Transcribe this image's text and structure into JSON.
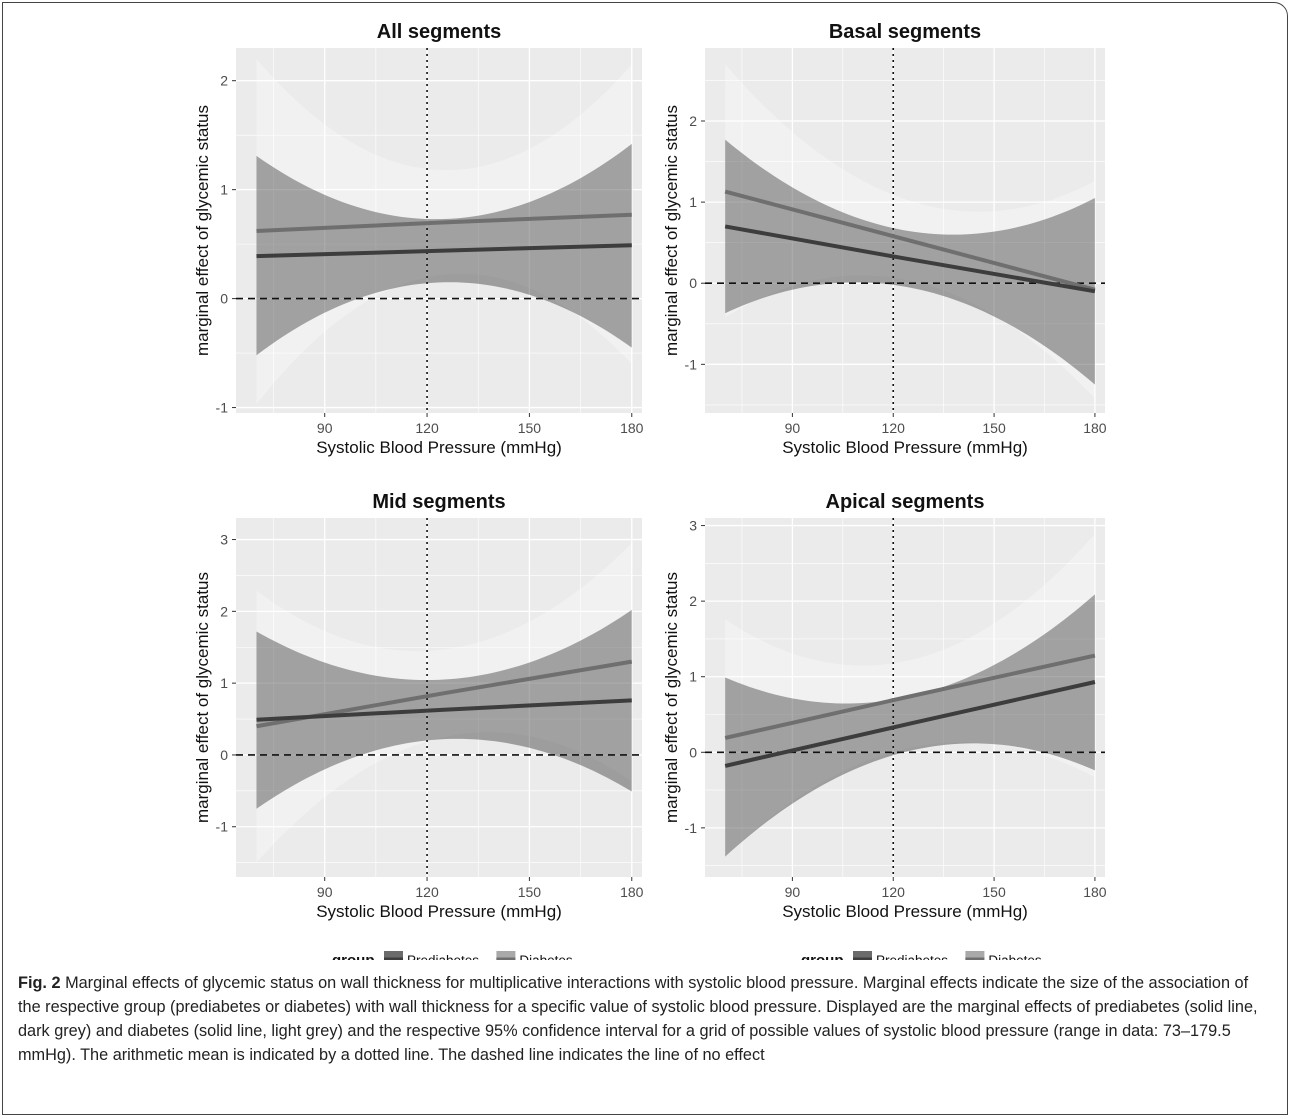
{
  "chart_data": [
    {
      "type": "line",
      "title": "All segments",
      "xlabel": "Systolic Blood Pressure (mmHg)",
      "ylabel": "marginal effect of glycemic status",
      "xlim": [
        64,
        183
      ],
      "ylim": [
        -1.05,
        2.3
      ],
      "xticks": [
        90,
        120,
        150,
        180
      ],
      "yticks": [
        -1,
        0,
        1,
        2
      ],
      "mean_line_x": 120,
      "no_effect_y": 0,
      "series": [
        {
          "name": "Prediabetes",
          "x": [
            70,
            125,
            180
          ],
          "y": [
            0.39,
            0.44,
            0.49
          ],
          "lower": [
            -0.52,
            0.15,
            -0.45
          ],
          "upper": [
            1.31,
            0.73,
            1.42
          ]
        },
        {
          "name": "Diabetes",
          "x": [
            70,
            125,
            180
          ],
          "y": [
            0.62,
            0.7,
            0.77
          ],
          "lower": [
            -0.97,
            0.22,
            -0.6
          ],
          "upper": [
            2.2,
            1.18,
            2.15
          ]
        }
      ]
    },
    {
      "type": "line",
      "title": "Basal segments",
      "xlabel": "Systolic Blood Pressure (mmHg)",
      "ylabel": "marginal effect of glycemic status",
      "xlim": [
        64,
        183
      ],
      "ylim": [
        -1.6,
        2.9
      ],
      "xticks": [
        90,
        120,
        150,
        180
      ],
      "yticks": [
        -1,
        0,
        1,
        2
      ],
      "mean_line_x": 120,
      "no_effect_y": 0,
      "series": [
        {
          "name": "Prediabetes",
          "x": [
            70,
            120,
            180
          ],
          "y": [
            0.7,
            0.33,
            -0.1
          ],
          "lower": [
            -0.37,
            -0.02,
            -1.25
          ],
          "upper": [
            1.77,
            0.68,
            1.05
          ]
        },
        {
          "name": "Diabetes",
          "x": [
            70,
            120,
            180
          ],
          "y": [
            1.13,
            0.58,
            -0.08
          ],
          "lower": [
            -0.42,
            0.07,
            -1.42
          ],
          "upper": [
            2.7,
            1.09,
            1.26
          ]
        }
      ]
    },
    {
      "type": "line",
      "title": "Mid segments",
      "xlabel": "Systolic Blood Pressure (mmHg)",
      "ylabel": "marginal effect of glycemic status",
      "xlim": [
        64,
        183
      ],
      "ylim": [
        -1.7,
        3.3
      ],
      "xticks": [
        90,
        120,
        150,
        180
      ],
      "yticks": [
        -1,
        0,
        1,
        2,
        3
      ],
      "mean_line_x": 120,
      "no_effect_y": 0,
      "series": [
        {
          "name": "Prediabetes",
          "x": [
            70,
            125,
            180
          ],
          "y": [
            0.49,
            0.63,
            0.76
          ],
          "lower": [
            -0.75,
            0.22,
            -0.51
          ],
          "upper": [
            1.72,
            1.05,
            2.02
          ]
        },
        {
          "name": "Diabetes",
          "x": [
            70,
            125,
            180
          ],
          "y": [
            0.4,
            0.86,
            1.3
          ],
          "lower": [
            -1.5,
            0.25,
            -0.37
          ],
          "upper": [
            2.29,
            1.47,
            2.95
          ]
        }
      ]
    },
    {
      "type": "line",
      "title": "Apical segments",
      "xlabel": "Systolic Blood Pressure (mmHg)",
      "ylabel": "marginal effect of glycemic status",
      "xlim": [
        64,
        183
      ],
      "ylim": [
        -1.65,
        3.1
      ],
      "xticks": [
        90,
        120,
        150,
        180
      ],
      "yticks": [
        -1,
        0,
        1,
        2,
        3
      ],
      "mean_line_x": 120,
      "no_effect_y": 0,
      "series": [
        {
          "name": "Prediabetes",
          "x": [
            70,
            125,
            180
          ],
          "y": [
            -0.18,
            0.38,
            0.93
          ],
          "lower": [
            -1.38,
            0.02,
            -0.24
          ],
          "upper": [
            0.99,
            0.74,
            2.09
          ]
        },
        {
          "name": "Diabetes",
          "x": [
            70,
            125,
            180
          ],
          "y": [
            0.19,
            0.74,
            1.28
          ],
          "lower": [
            -1.38,
            0.06,
            -0.33
          ],
          "upper": [
            1.76,
            1.22,
            2.89
          ]
        }
      ]
    }
  ],
  "legend": {
    "title": "group",
    "items": [
      {
        "label": "Prediabetes",
        "line_color": "#3d3d3d",
        "fill_color": "#6b6b6b"
      },
      {
        "label": "Diabetes",
        "line_color": "#6f6f6f",
        "fill_color": "#a9a9a9"
      }
    ]
  },
  "colors": {
    "panel_bg": "#ebebeb",
    "grid": "#ffffff",
    "prediabetes_line": "#3d3d3d",
    "diabetes_line": "#6f6f6f",
    "prediabetes_band": "#000000",
    "diabetes_band": "#ffffff"
  },
  "caption": {
    "label": "Fig. 2",
    "text": "Marginal effects of glycemic status on wall thickness for multiplicative interactions with systolic blood pressure. Marginal effects indicate the size of the association of the respective group (prediabetes or diabetes) with wall thickness for a specific value of systolic blood pressure. Displayed are the marginal effects of prediabetes (solid line, dark grey) and diabetes (solid line, light grey) and the respective 95% confidence interval for a grid of possible values of systolic blood pressure (range in data: 73–179.5 mmHg). The arithmetic mean is indicated by a dotted line. The dashed line indicates the line of no effect"
  }
}
